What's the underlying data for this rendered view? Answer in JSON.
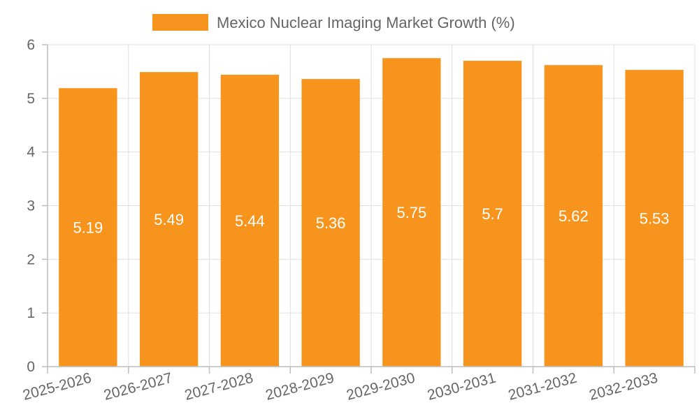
{
  "chart_data": {
    "type": "bar",
    "title": "",
    "xlabel": "",
    "ylabel": "",
    "categories": [
      "2025-2026",
      "2026-2027",
      "2027-2028",
      "2028-2029",
      "2029-2030",
      "2030-2031",
      "2031-2032",
      "2032-2033"
    ],
    "series": [
      {
        "name": "Mexico Nuclear Imaging Market Growth (%)",
        "values": [
          5.19,
          5.49,
          5.44,
          5.36,
          5.75,
          5.7,
          5.62,
          5.53
        ],
        "value_labels": [
          "5.19",
          "5.49",
          "5.44",
          "5.36",
          "5.75",
          "5.7",
          "5.62",
          "5.53"
        ],
        "color": "#f7941d"
      }
    ],
    "ylim": [
      0,
      6
    ],
    "yticks": [
      "0",
      "1",
      "2",
      "3",
      "4",
      "5",
      "6"
    ],
    "grid": true,
    "legend_position": "top-center"
  },
  "colors": {
    "bar": "#f7941d",
    "grid": "#e0e0e0",
    "text": "#666666"
  }
}
